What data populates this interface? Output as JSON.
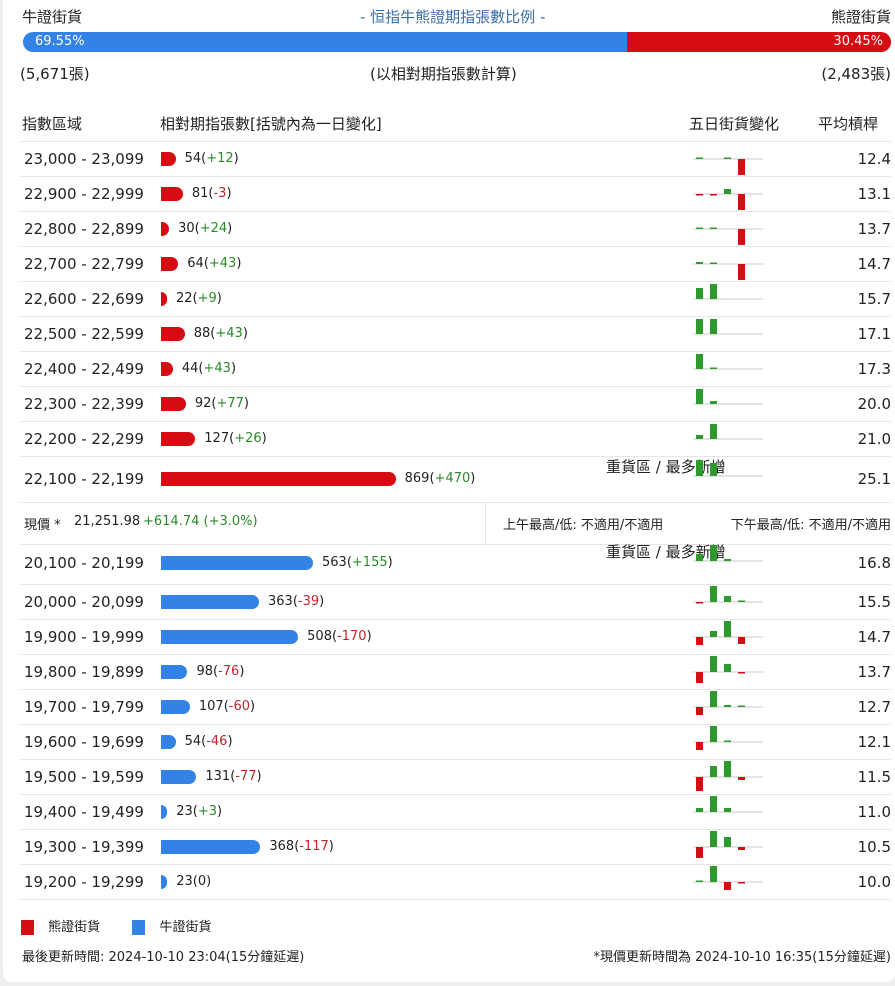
{
  "header": {
    "bull_label": "牛證街貨",
    "title": "- 恒指牛熊證期指張數比例 -",
    "bear_label": "熊證街貨",
    "bull_pct": "69.55%",
    "bear_pct": "30.45%",
    "bull_ratio": 69.55,
    "bull_count": "(5,671張)",
    "note": "(以相對期指張數計算)",
    "bear_count": "(2,483張)"
  },
  "columns": {
    "range": "指數區域",
    "contracts": "相對期指張數[括號內為一日變化]",
    "five_day": "五日街貨變化",
    "avg": "平均槓桿"
  },
  "colors": {
    "bull": "#3382e6",
    "bear": "#d50c12",
    "up": "#2e9a2e",
    "down": "#d50c12"
  },
  "heavy_label": "重貨區 / 最多新增",
  "bear_rows": [
    {
      "range": "23,000 - 23,099",
      "count": 54,
      "change": "+12",
      "avg": "12.4",
      "five_day": [
        1,
        0,
        1,
        -16
      ]
    },
    {
      "range": "22,900 - 22,999",
      "count": 81,
      "change": "-3",
      "avg": "13.1",
      "five_day": [
        -1,
        -1,
        5,
        -16
      ]
    },
    {
      "range": "22,800 - 22,899",
      "count": 30,
      "change": "+24",
      "avg": "13.7",
      "five_day": [
        1,
        1,
        0,
        -16
      ]
    },
    {
      "range": "22,700 - 22,799",
      "count": 64,
      "change": "+43",
      "avg": "14.7",
      "five_day": [
        2,
        1,
        0,
        -16
      ]
    },
    {
      "range": "22,600 - 22,699",
      "count": 22,
      "change": "+9",
      "avg": "15.7",
      "five_day": [
        11,
        15,
        0,
        0
      ]
    },
    {
      "range": "22,500 - 22,599",
      "count": 88,
      "change": "+43",
      "avg": "17.1",
      "five_day": [
        15,
        15,
        0,
        0
      ]
    },
    {
      "range": "22,400 - 22,499",
      "count": 44,
      "change": "+43",
      "avg": "17.3",
      "five_day": [
        15,
        1,
        0,
        0
      ]
    },
    {
      "range": "22,300 - 22,399",
      "count": 92,
      "change": "+77",
      "avg": "20.0",
      "five_day": [
        15,
        3,
        0,
        0
      ]
    },
    {
      "range": "22,200 - 22,299",
      "count": 127,
      "change": "+26",
      "avg": "21.0",
      "five_day": [
        4,
        15,
        0,
        0
      ]
    },
    {
      "range": "22,100 - 22,199",
      "count": 869,
      "change": "+470",
      "avg": "25.1",
      "five_day": [
        16,
        13,
        0,
        0
      ],
      "heavy": true
    }
  ],
  "price": {
    "label": "現價 *",
    "value": "21,251.98",
    "change": "+614.74 (+3.0%)",
    "am": "上午最高/低: 不適用/不適用",
    "pm": "下午最高/低: 不適用/不適用"
  },
  "bull_rows": [
    {
      "range": "20,100 - 20,199",
      "count": 563,
      "change": "+155",
      "avg": "16.8",
      "five_day": [
        7,
        16,
        2,
        0
      ],
      "heavy": true
    },
    {
      "range": "20,000 - 20,099",
      "count": 363,
      "change": "-39",
      "avg": "15.5",
      "five_day": [
        -1,
        16,
        6,
        1
      ]
    },
    {
      "range": "19,900 - 19,999",
      "count": 508,
      "change": "-170",
      "avg": "14.7",
      "five_day": [
        -8,
        6,
        16,
        -7
      ]
    },
    {
      "range": "19,800 - 19,899",
      "count": 98,
      "change": "-76",
      "avg": "13.7",
      "five_day": [
        -11,
        16,
        8,
        -1
      ]
    },
    {
      "range": "19,700 - 19,799",
      "count": 107,
      "change": "-60",
      "avg": "12.7",
      "five_day": [
        -8,
        16,
        2,
        1
      ]
    },
    {
      "range": "19,600 - 19,699",
      "count": 54,
      "change": "-46",
      "avg": "12.1",
      "five_day": [
        -8,
        16,
        1,
        0
      ]
    },
    {
      "range": "19,500 - 19,599",
      "count": 131,
      "change": "-77",
      "avg": "11.5",
      "five_day": [
        -14,
        11,
        16,
        -3
      ]
    },
    {
      "range": "19,400 - 19,499",
      "count": 23,
      "change": "+3",
      "avg": "11.0",
      "five_day": [
        4,
        16,
        4,
        0
      ]
    },
    {
      "range": "19,300 - 19,399",
      "count": 368,
      "change": "-117",
      "avg": "10.5",
      "five_day": [
        -11,
        16,
        10,
        -3
      ]
    },
    {
      "range": "19,200 - 19,299",
      "count": 23,
      "change": "0",
      "avg": "10.0",
      "five_day": [
        1,
        16,
        -8,
        -1
      ]
    }
  ],
  "legend": {
    "bear": "熊證街貨",
    "bull": "牛證街貨"
  },
  "footer": {
    "updated": "最後更新時間: 2024-10-10 23:04(15分鐘延遲)",
    "price_updated": "*現價更新時間為 2024-10-10 16:35(15分鐘延遲)"
  }
}
